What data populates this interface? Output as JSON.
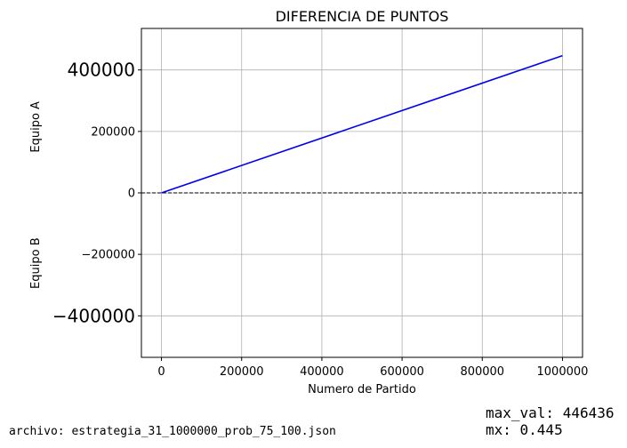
{
  "chart_data": {
    "type": "line",
    "title": "DIFERENCIA DE PUNTOS",
    "xlabel": "Numero de Partido",
    "ylabel_top": "Equipo A",
    "ylabel_bottom": "Equipo B",
    "xlim": [
      -50000,
      1050000
    ],
    "ylim": [
      -535000,
      535000
    ],
    "x_ticks": [
      0,
      200000,
      400000,
      600000,
      800000,
      1000000
    ],
    "x_tick_labels": [
      "0",
      "200000",
      "400000",
      "600000",
      "800000",
      "1000000"
    ],
    "y_ticks": [
      -400000,
      -200000,
      0,
      200000,
      400000
    ],
    "y_tick_labels": [
      "−400000",
      "−200000",
      "0",
      "200000",
      "400000"
    ],
    "y_big_ticks": [
      -400000,
      400000
    ],
    "grid": true,
    "series": [
      {
        "color": "#0000ee",
        "x": [
          0,
          1000000
        ],
        "y": [
          0,
          446436
        ]
      }
    ],
    "reference_line": {
      "y": 0,
      "style": "dashed",
      "color": "#000000"
    }
  },
  "footer": {
    "file_label": "archivo: estrategia_31_1000000_prob_75_100.json",
    "max_val_label": "max_val: 446436",
    "mx_label": "mx: 0.445"
  }
}
